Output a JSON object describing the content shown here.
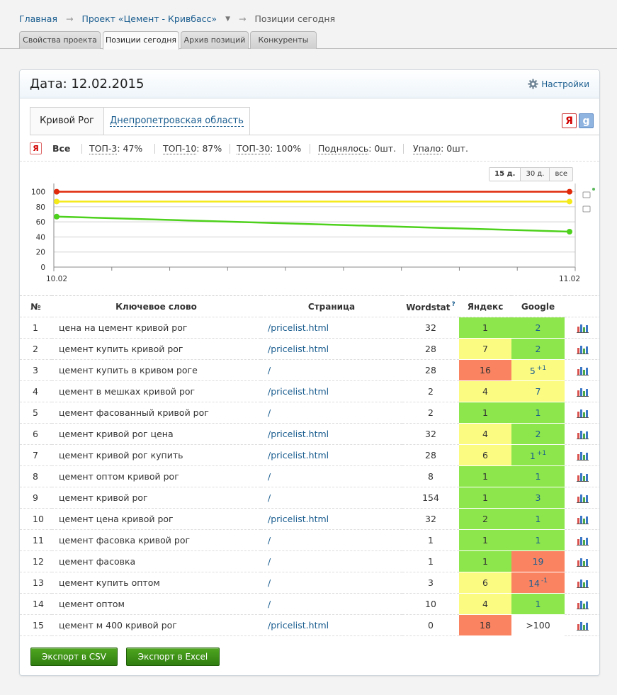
{
  "breadcrumb": {
    "home": "Главная",
    "project": "Проект «Цемент - Кривбасс»",
    "current": "Позиции сегодня"
  },
  "tabs": [
    {
      "label": "Свойства проекта",
      "active": false
    },
    {
      "label": "Позиции сегодня",
      "active": true
    },
    {
      "label": "Архив позиций",
      "active": false
    },
    {
      "label": "Конкуренты",
      "active": false
    }
  ],
  "panel": {
    "date_label": "Дата: 12.02.2015",
    "settings_label": "Настройки"
  },
  "regions": [
    {
      "label": "Кривой Рог",
      "active": true
    },
    {
      "label": "Днепропетровская область",
      "active": false
    }
  ],
  "engines": {
    "yandex": "Я",
    "google": "g"
  },
  "stats": {
    "engine_badge": "Я",
    "all": "Все",
    "top3_label": "ТОП-3",
    "top3_value": ": 47%",
    "top10_label": "ТОП-10",
    "top10_value": ": 87%",
    "top30_label": "ТОП-30",
    "top30_value": ": 100%",
    "up_label": "Поднялось",
    "up_value": ": 0шт.",
    "down_label": "Упало",
    "down_value": ": 0шт."
  },
  "period": [
    "15 д.",
    "30 д.",
    "все"
  ],
  "chart_data": {
    "type": "line",
    "x": [
      "10.02",
      "11.02"
    ],
    "ylim": [
      0,
      110
    ],
    "yticks": [
      0,
      20,
      40,
      60,
      80,
      100
    ],
    "series": [
      {
        "values": [
          100,
          100
        ],
        "color": "#e02a0a"
      },
      {
        "values": [
          87,
          87
        ],
        "color": "#f4ea1a"
      },
      {
        "values": [
          67,
          47
        ],
        "color": "#4ed11c"
      }
    ],
    "grid": true
  },
  "table": {
    "headers": {
      "num": "№",
      "keyword": "Ключевое слово",
      "page": "Страница",
      "wordstat": "Wordstat",
      "wordstat_help": "?",
      "yandex": "Яндекс",
      "google": "Google"
    },
    "rows": [
      {
        "num": "1",
        "keyword": "цена на цемент кривой рог",
        "page": "/pricelist.html",
        "wordstat": "32",
        "yandex": "1",
        "yandex_color": "green",
        "google": "2",
        "google_delta": "",
        "google_color": "green"
      },
      {
        "num": "2",
        "keyword": "цемент купить кривой рог",
        "page": "/pricelist.html",
        "wordstat": "28",
        "yandex": "7",
        "yandex_color": "yellow",
        "google": "2",
        "google_delta": "",
        "google_color": "green"
      },
      {
        "num": "3",
        "keyword": "цемент купить в кривом роге",
        "page": "/",
        "wordstat": "28",
        "yandex": "16",
        "yandex_color": "red",
        "google": "5",
        "google_delta": "+1",
        "google_color": "yellow"
      },
      {
        "num": "4",
        "keyword": "цемент в мешках кривой рог",
        "page": "/pricelist.html",
        "wordstat": "2",
        "yandex": "4",
        "yandex_color": "yellow",
        "google": "7",
        "google_delta": "",
        "google_color": "yellow"
      },
      {
        "num": "5",
        "keyword": "цемент фасованный кривой рог",
        "page": "/",
        "wordstat": "2",
        "yandex": "1",
        "yandex_color": "green",
        "google": "1",
        "google_delta": "",
        "google_color": "green"
      },
      {
        "num": "6",
        "keyword": "цемент кривой рог цена",
        "page": "/pricelist.html",
        "wordstat": "32",
        "yandex": "4",
        "yandex_color": "yellow",
        "google": "2",
        "google_delta": "",
        "google_color": "green"
      },
      {
        "num": "7",
        "keyword": "цемент кривой рог купить",
        "page": "/pricelist.html",
        "wordstat": "28",
        "yandex": "6",
        "yandex_color": "yellow",
        "google": "1",
        "google_delta": "+1",
        "google_color": "green"
      },
      {
        "num": "8",
        "keyword": "цемент оптом кривой рог",
        "page": "/",
        "wordstat": "8",
        "yandex": "1",
        "yandex_color": "green",
        "google": "1",
        "google_delta": "",
        "google_color": "green"
      },
      {
        "num": "9",
        "keyword": "цемент кривой рог",
        "page": "/",
        "wordstat": "154",
        "yandex": "1",
        "yandex_color": "green",
        "google": "3",
        "google_delta": "",
        "google_color": "green"
      },
      {
        "num": "10",
        "keyword": "цемент цена кривой рог",
        "page": "/pricelist.html",
        "wordstat": "32",
        "yandex": "2",
        "yandex_color": "green",
        "google": "1",
        "google_delta": "",
        "google_color": "green"
      },
      {
        "num": "11",
        "keyword": "цемент фасовка кривой рог",
        "page": "/",
        "wordstat": "1",
        "yandex": "1",
        "yandex_color": "green",
        "google": "1",
        "google_delta": "",
        "google_color": "green"
      },
      {
        "num": "12",
        "keyword": "цемент фасовка",
        "page": "/",
        "wordstat": "1",
        "yandex": "1",
        "yandex_color": "green",
        "google": "19",
        "google_delta": "",
        "google_color": "red"
      },
      {
        "num": "13",
        "keyword": "цемент купить оптом",
        "page": "/",
        "wordstat": "3",
        "yandex": "6",
        "yandex_color": "yellow",
        "google": "14",
        "google_delta": "-1",
        "google_color": "red"
      },
      {
        "num": "14",
        "keyword": "цемент оптом",
        "page": "/",
        "wordstat": "10",
        "yandex": "4",
        "yandex_color": "yellow",
        "google": "1",
        "google_delta": "",
        "google_color": "green"
      },
      {
        "num": "15",
        "keyword": "цемент м 400 кривой рог",
        "page": "/pricelist.html",
        "wordstat": "0",
        "yandex": "18",
        "yandex_color": "red",
        "google": ">100",
        "google_delta": "",
        "google_color": "none"
      }
    ]
  },
  "buttons": {
    "export_csv": "Экспорт в CSV",
    "export_excel": "Экспорт в Excel"
  }
}
